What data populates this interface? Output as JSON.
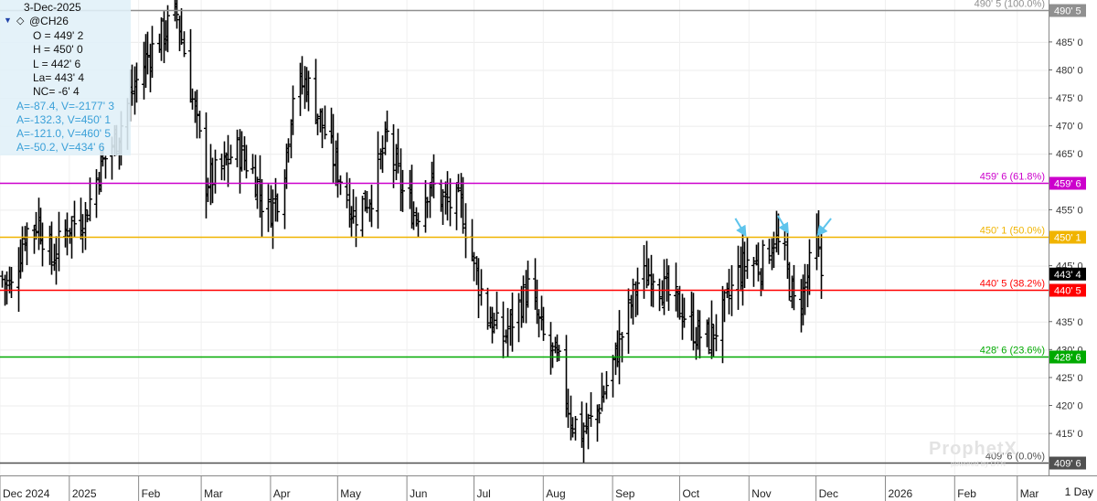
{
  "header": {
    "date": "3-Dec-2025",
    "symbol": "@CH26",
    "ohlc": {
      "open": "O = 449' 2",
      "high": "H = 450' 0",
      "low": "L = 442' 6",
      "last": "La= 443' 4",
      "net_change": "NC= -6' 4"
    },
    "moving_averages": [
      "A=-87.4, V=-2177' 3",
      "A=-132.3, V=450' 1",
      "A=-121.0, V=460' 5",
      "A=-50.2, V=434' 6"
    ]
  },
  "interval": "1 Day",
  "watermark": {
    "brand": "ProphetX",
    "sub": "powered by DTN"
  },
  "colors": {
    "bars": "#000000",
    "fib_100": "#909090",
    "fib_618": "#cc00cc",
    "fib_50": "#f0b400",
    "fib_382": "#ff0000",
    "fib_236": "#00aa00",
    "fib_0": "#505050",
    "arrows": "#5ec4ec",
    "last_price_bg": "#000000"
  },
  "chart_data": {
    "type": "ohlc",
    "y_axis": {
      "range": [
        407.5,
        492.5
      ],
      "ticks": [
        415,
        420,
        425,
        430,
        435,
        445,
        455,
        465,
        470,
        475,
        480,
        485
      ],
      "tick_labels": [
        "415' 0",
        "420' 0",
        "425' 0",
        "430' 0",
        "435' 0",
        "445' 0",
        "455' 0",
        "465' 0",
        "470' 0",
        "475' 0",
        "480' 0",
        "485' 0"
      ]
    },
    "x_axis": {
      "range": [
        "2024-12-01",
        "2026-03-15"
      ],
      "ticks": [
        {
          "date": "2024-12-01",
          "label": "Dec 2024"
        },
        {
          "date": "2025-01-01",
          "label": "2025"
        },
        {
          "date": "2025-02-01",
          "label": "Feb"
        },
        {
          "date": "2025-03-01",
          "label": "Mar"
        },
        {
          "date": "2025-04-01",
          "label": "Apr"
        },
        {
          "date": "2025-05-01",
          "label": "May"
        },
        {
          "date": "2025-06-01",
          "label": "Jun"
        },
        {
          "date": "2025-07-01",
          "label": "Jul"
        },
        {
          "date": "2025-08-01",
          "label": "Aug"
        },
        {
          "date": "2025-09-01",
          "label": "Sep"
        },
        {
          "date": "2025-10-01",
          "label": "Oct"
        },
        {
          "date": "2025-11-01",
          "label": "Nov"
        },
        {
          "date": "2025-12-01",
          "label": "Dec"
        },
        {
          "date": "2026-01-01",
          "label": "2026"
        },
        {
          "date": "2026-02-01",
          "label": "Feb"
        },
        {
          "date": "2026-03-01",
          "label": "Mar"
        }
      ]
    },
    "fib_levels": [
      {
        "key": "fib_100",
        "value": 490.625,
        "label": "490' 5 (100.0%)",
        "price_label": "490' 5"
      },
      {
        "key": "fib_618",
        "value": 459.75,
        "label": "459' 6 (61.8%)",
        "price_label": "459' 6"
      },
      {
        "key": "fib_50",
        "value": 450.125,
        "label": "450' 1 (50.0%)",
        "price_label": "450' 1"
      },
      {
        "key": "fib_382",
        "value": 440.625,
        "label": "440' 5 (38.2%)",
        "price_label": "440' 5"
      },
      {
        "key": "fib_236",
        "value": 428.75,
        "label": "428' 6 (23.6%)",
        "price_label": "428' 6"
      },
      {
        "key": "fib_0",
        "value": 409.75,
        "label": "409' 6 (0.0%)",
        "price_label": "409' 6"
      }
    ],
    "last_price": {
      "value": 443.5,
      "label": "443' 4"
    },
    "arrows": [
      {
        "date": "2025-10-30",
        "value": 450.5
      },
      {
        "date": "2025-11-18",
        "value": 451.0
      },
      {
        "date": "2025-12-02",
        "value": 450.5
      }
    ],
    "price_path": [
      [
        "2024-12-01",
        443
      ],
      [
        "2024-12-06",
        441
      ],
      [
        "2024-12-12",
        451
      ],
      [
        "2024-12-18",
        453
      ],
      [
        "2024-12-24",
        446
      ],
      [
        "2024-12-31",
        452
      ],
      [
        "2025-01-08",
        454
      ],
      [
        "2025-01-14",
        462
      ],
      [
        "2025-01-22",
        468
      ],
      [
        "2025-01-28",
        475
      ],
      [
        "2025-02-04",
        482
      ],
      [
        "2025-02-11",
        486
      ],
      [
        "2025-02-18",
        490
      ],
      [
        "2025-02-24",
        477
      ],
      [
        "2025-03-03",
        460
      ],
      [
        "2025-03-10",
        462
      ],
      [
        "2025-03-16",
        466
      ],
      [
        "2025-03-24",
        462
      ],
      [
        "2025-03-30",
        454
      ],
      [
        "2025-04-06",
        459
      ],
      [
        "2025-04-11",
        476
      ],
      [
        "2025-04-17",
        478
      ],
      [
        "2025-04-24",
        470
      ],
      [
        "2025-05-01",
        462
      ],
      [
        "2025-05-08",
        454
      ],
      [
        "2025-05-16",
        458
      ],
      [
        "2025-05-23",
        468
      ],
      [
        "2025-05-30",
        458
      ],
      [
        "2025-06-05",
        454
      ],
      [
        "2025-06-11",
        460
      ],
      [
        "2025-06-18",
        456
      ],
      [
        "2025-06-25",
        456
      ],
      [
        "2025-07-01",
        445
      ],
      [
        "2025-07-07",
        436
      ],
      [
        "2025-07-14",
        432
      ],
      [
        "2025-07-20",
        437
      ],
      [
        "2025-07-25",
        441
      ],
      [
        "2025-08-01",
        432
      ],
      [
        "2025-08-08",
        427
      ],
      [
        "2025-08-13",
        418
      ],
      [
        "2025-08-18",
        415
      ],
      [
        "2025-08-24",
        418
      ],
      [
        "2025-08-31",
        426
      ],
      [
        "2025-09-06",
        434
      ],
      [
        "2025-09-12",
        442
      ],
      [
        "2025-09-19",
        444
      ],
      [
        "2025-09-25",
        440
      ],
      [
        "2025-10-02",
        437
      ],
      [
        "2025-10-08",
        433
      ],
      [
        "2025-10-14",
        432
      ],
      [
        "2025-10-19",
        435
      ],
      [
        "2025-10-26",
        443
      ],
      [
        "2025-10-31",
        446
      ],
      [
        "2025-11-06",
        445
      ],
      [
        "2025-11-12",
        450
      ],
      [
        "2025-11-17",
        446
      ],
      [
        "2025-11-21",
        438
      ],
      [
        "2025-11-25",
        440
      ],
      [
        "2025-12-01",
        449
      ],
      [
        "2025-12-03",
        443.5
      ]
    ]
  }
}
